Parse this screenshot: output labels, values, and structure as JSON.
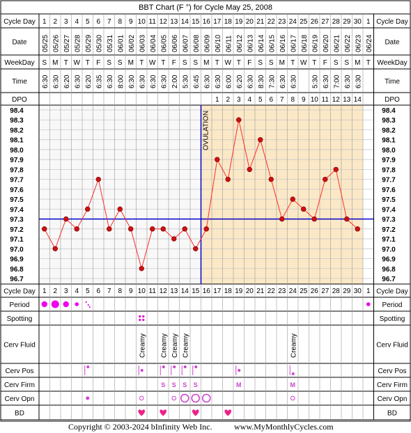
{
  "title": "BBT Chart (F °) for Cycle May 25, 2008",
  "copyright": "Copyright © 2003-2024 bInfinity Web Inc.",
  "website": "www.MyMonthlyCycles.com",
  "ovulation_label": "OVULATION",
  "colors": {
    "frame": "#000000",
    "header_bg": "#ffffff",
    "pre_ov_bg": "#f8f8f8",
    "post_ov_bg": "#fbe8c6",
    "grid": "#c9c9c9",
    "line": "#ff2d2d",
    "dot": "#cc1111",
    "coverline": "#0000cc",
    "ovulation_line": "#0000cc",
    "period_dot": "#ee00ee",
    "spotting": "#dd22cc",
    "pos_text": "#cc44cc",
    "heart": "#ee2288"
  },
  "row_labels": {
    "cycle_day": "Cycle Day",
    "date": "Date",
    "weekday": "WeekDay",
    "time": "Time",
    "dpo": "DPO",
    "period": "Period",
    "spotting": "Spotting",
    "cerv_fluid": "Cerv Fluid",
    "cerv_pos": "Cerv Pos",
    "cerv_firm": "Cerv Firm",
    "cerv_opn": "Cerv Opn",
    "bd": "BD"
  },
  "cycle_days": [
    "1",
    "2",
    "3",
    "4",
    "5",
    "6",
    "7",
    "8",
    "9",
    "10",
    "11",
    "12",
    "13",
    "14",
    "15",
    "16",
    "17",
    "18",
    "19",
    "20",
    "21",
    "22",
    "23",
    "24",
    "25",
    "26",
    "27",
    "28",
    "29",
    "30",
    "1"
  ],
  "dates": [
    "05/25",
    "05/26",
    "05/27",
    "05/28",
    "05/29",
    "05/30",
    "05/31",
    "06/01",
    "06/02",
    "06/03",
    "06/04",
    "06/05",
    "06/06",
    "06/07",
    "06/08",
    "06/09",
    "06/10",
    "06/11",
    "06/12",
    "06/13",
    "06/14",
    "06/15",
    "06/16",
    "06/17",
    "06/18",
    "06/19",
    "06/20",
    "06/21",
    "06/22",
    "06/23",
    "06/24"
  ],
  "weekdays": [
    "S",
    "M",
    "T",
    "W",
    "T",
    "F",
    "S",
    "S",
    "M",
    "T",
    "W",
    "T",
    "F",
    "S",
    "S",
    "M",
    "T",
    "W",
    "T",
    "F",
    "S",
    "S",
    "M",
    "T",
    "W",
    "T",
    "F",
    "S",
    "S",
    "M",
    "T"
  ],
  "times": [
    "6:30",
    "6:30",
    "6:20",
    "6:30",
    "6:20",
    "6:35",
    "6:30",
    "8:00",
    "6:30",
    "6:30",
    "6:30",
    "6:30",
    "2:00",
    "5:30",
    "6:45",
    "6:30",
    "6:30",
    "6:00",
    "6:20",
    "6:30",
    "8:30",
    "7:30",
    "6:30",
    "6:30",
    "",
    "5:30",
    "6:30",
    "7:00",
    "6:30",
    "6:30",
    ""
  ],
  "dpo": [
    "",
    "",
    "",
    "",
    "",
    "",
    "",
    "",
    "",
    "",
    "",
    "",
    "",
    "",
    "",
    "",
    "1",
    "2",
    "3",
    "4",
    "5",
    "6",
    "7",
    "8",
    "9",
    "10",
    "11",
    "12",
    "13",
    "14",
    ""
  ],
  "cerv_fluid": [
    "",
    "",
    "",
    "",
    "",
    "",
    "",
    "",
    "",
    "Creamy",
    "",
    "Creamy",
    "Creamy",
    "Creamy",
    "",
    "",
    "",
    "",
    "",
    "",
    "",
    "",
    "",
    "Creamy",
    "",
    "",
    "",
    "",
    "",
    "",
    ""
  ],
  "cerv_firm": [
    "",
    "",
    "",
    "",
    "",
    "",
    "",
    "",
    "",
    "",
    "",
    "S",
    "S",
    "S",
    "S",
    "",
    "",
    "",
    "M",
    "",
    "",
    "",
    "",
    "M",
    "",
    "",
    "",
    "",
    "",
    "",
    ""
  ],
  "chart_data": {
    "type": "line",
    "title": "BBT Chart (F °) for Cycle May 25, 2008",
    "x": [
      1,
      2,
      3,
      4,
      5,
      6,
      7,
      8,
      9,
      10,
      11,
      12,
      13,
      14,
      15,
      16,
      17,
      18,
      19,
      20,
      21,
      22,
      23,
      24,
      25,
      26,
      27,
      28,
      29,
      30
    ],
    "y": [
      97.2,
      97.0,
      97.3,
      97.2,
      97.4,
      97.7,
      97.2,
      97.4,
      97.2,
      96.8,
      97.2,
      97.2,
      97.1,
      97.2,
      97.0,
      97.2,
      97.9,
      97.7,
      98.3,
      97.8,
      98.1,
      97.7,
      97.3,
      97.5,
      97.4,
      97.3,
      97.7,
      97.8,
      97.3,
      97.2
    ],
    "y_ticks": [
      "98.4",
      "98.3",
      "98.2",
      "98.1",
      "98.0",
      "97.9",
      "97.8",
      "97.7",
      "97.6",
      "97.5",
      "97.4",
      "97.3",
      "97.2",
      "97.1",
      "97.0",
      "96.9",
      "96.8",
      "96.7"
    ],
    "ylim": [
      96.7,
      98.4
    ],
    "coverline": 97.3,
    "ovulation_day": 16,
    "grid": true
  },
  "markers": {
    "period": [
      {
        "day": 1,
        "size": "medium"
      },
      {
        "day": 2,
        "size": "large"
      },
      {
        "day": 3,
        "size": "medium"
      },
      {
        "day": 4,
        "size": "small"
      },
      {
        "day": 5,
        "size": "spot"
      },
      {
        "day": 31,
        "size": "small"
      }
    ],
    "spotting_days": [
      10
    ],
    "cerv_pos": [
      {
        "day": 5,
        "level": "high"
      },
      {
        "day": 10,
        "level": "mid"
      },
      {
        "day": 12,
        "level": "high"
      },
      {
        "day": 13,
        "level": "high"
      },
      {
        "day": 14,
        "level": "high"
      },
      {
        "day": 15,
        "level": "high"
      },
      {
        "day": 19,
        "level": "mid"
      },
      {
        "day": 24,
        "level": "low"
      }
    ],
    "cerv_opn": [
      {
        "day": 5,
        "level": "closed"
      },
      {
        "day": 10,
        "level": "small"
      },
      {
        "day": 13,
        "level": "small"
      },
      {
        "day": 14,
        "level": "large"
      },
      {
        "day": 15,
        "level": "large"
      },
      {
        "day": 16,
        "level": "large"
      },
      {
        "day": 24,
        "level": "small"
      }
    ],
    "bd_days": [
      10,
      12,
      15,
      18
    ]
  }
}
